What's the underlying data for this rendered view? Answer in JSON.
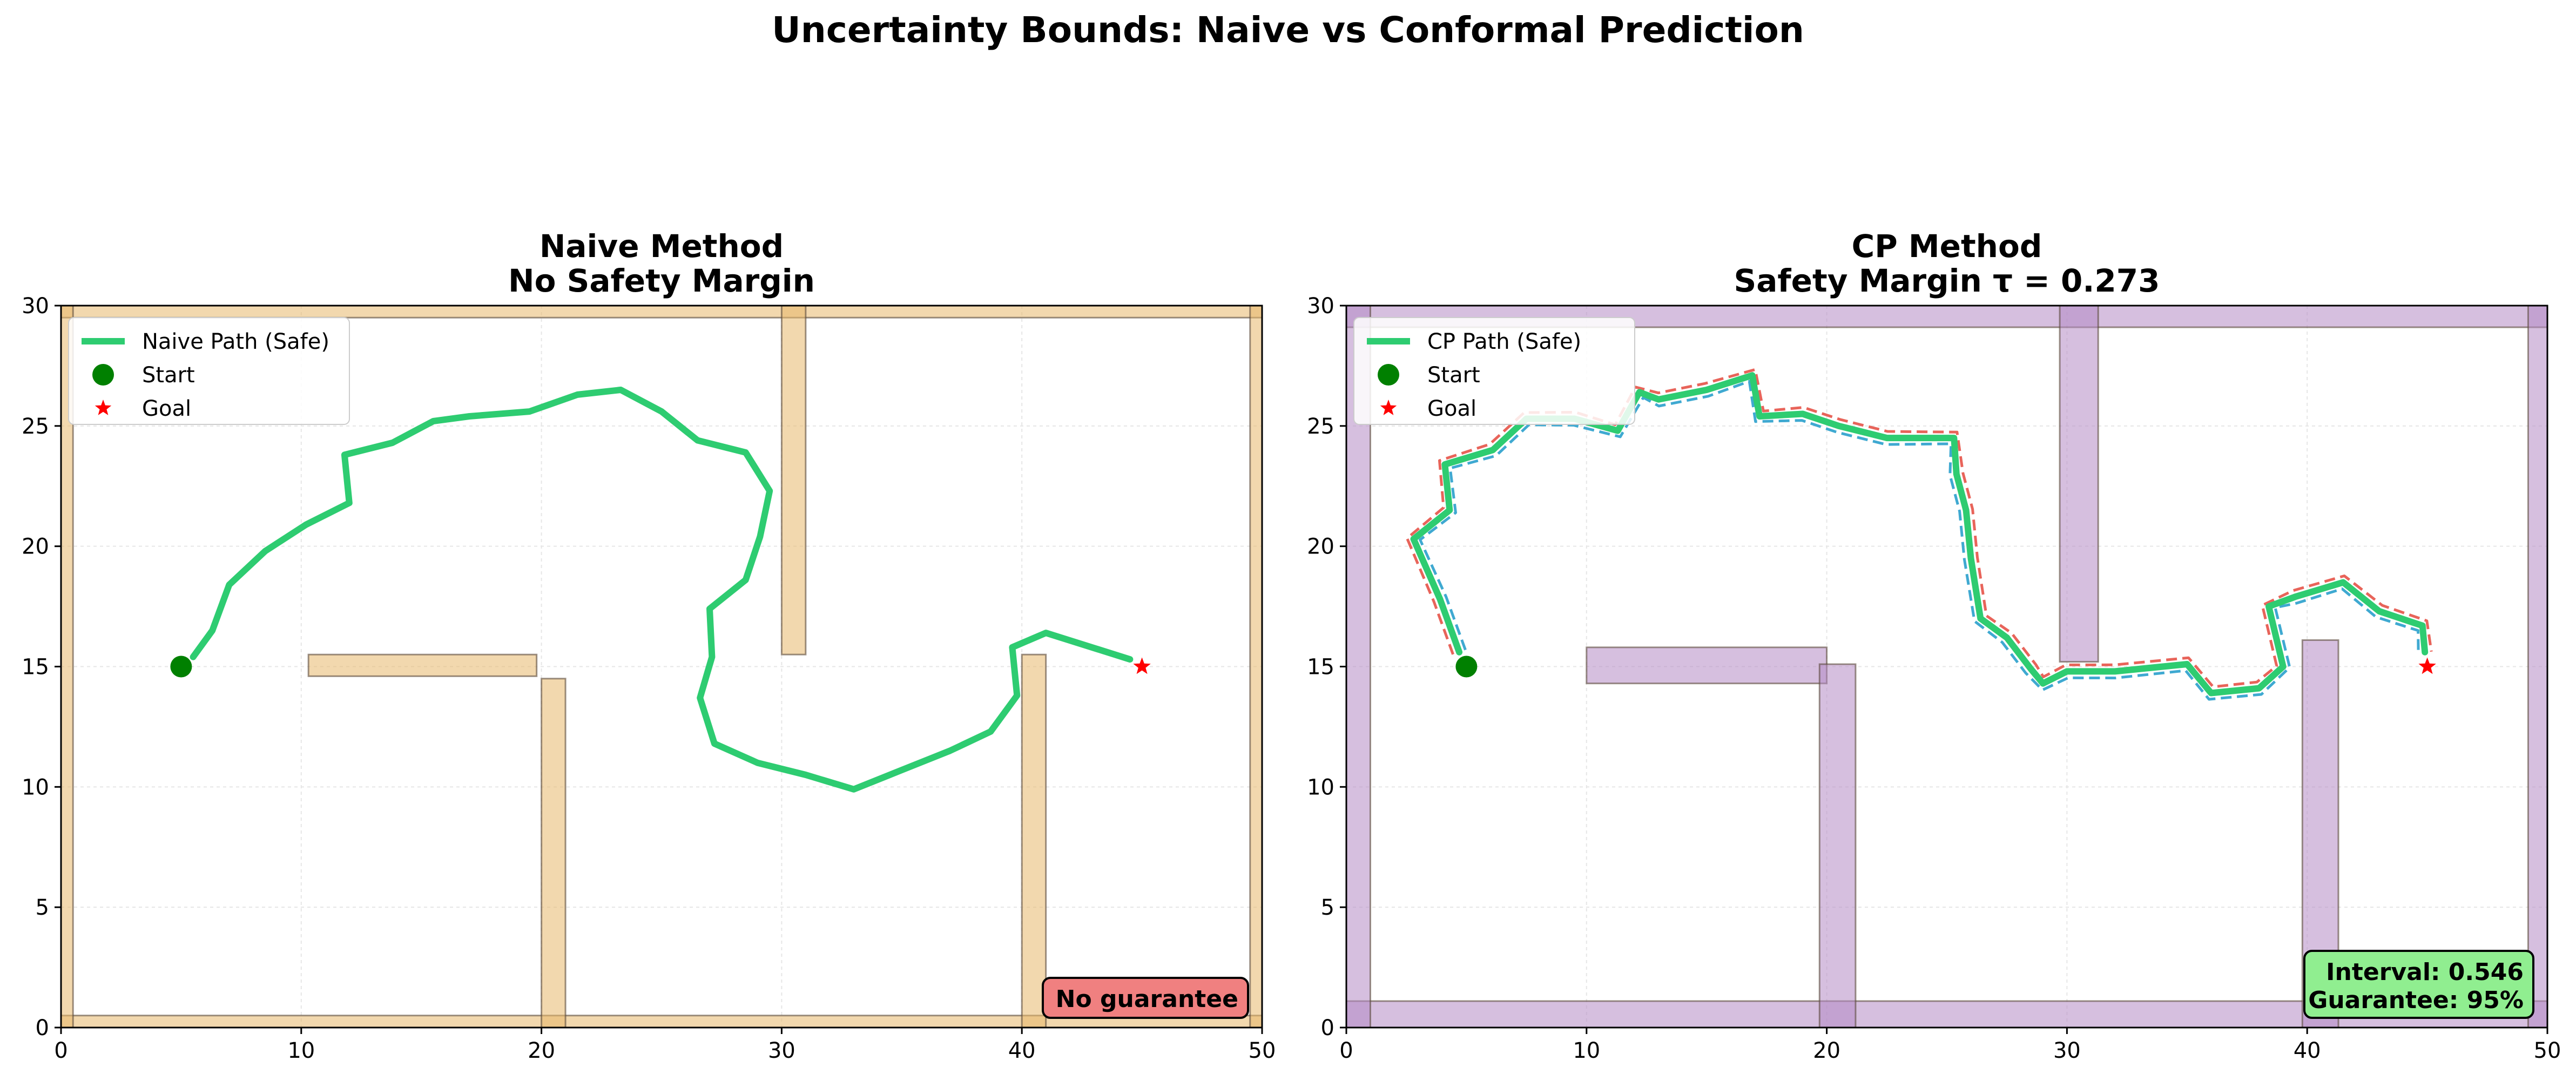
{
  "suptitle": "Uncertainty Bounds: Naive vs Conformal Prediction",
  "chart_data": [
    {
      "type": "line",
      "title_line1": "Naive Method",
      "title_line2": "No Safety Margin",
      "xlim": [
        0,
        50
      ],
      "ylim": [
        0,
        30
      ],
      "xticks": [
        0,
        10,
        20,
        30,
        40,
        50
      ],
      "yticks": [
        0,
        5,
        10,
        15,
        20,
        25,
        30
      ],
      "grid": true,
      "legend_placement": "upper-left",
      "obstacle_color": "#e8b86b",
      "obstacles": [
        {
          "x": 0,
          "y": 0,
          "w": 50,
          "h": 0.5
        },
        {
          "x": 0,
          "y": 29.5,
          "w": 50,
          "h": 0.5
        },
        {
          "x": 0,
          "y": 0,
          "w": 0.5,
          "h": 30
        },
        {
          "x": 49.5,
          "y": 0,
          "w": 0.5,
          "h": 30
        },
        {
          "x": 10.3,
          "y": 14.6,
          "w": 9.5,
          "h": 0.9
        },
        {
          "x": 20,
          "y": 0,
          "w": 1,
          "h": 14.5
        },
        {
          "x": 30,
          "y": 15.5,
          "w": 1,
          "h": 14.5
        },
        {
          "x": 40,
          "y": 0,
          "w": 1,
          "h": 15.5
        }
      ],
      "path": {
        "name": "Naive Path (Safe)",
        "color": "#2ecc71",
        "x": [
          5.5,
          6.3,
          7.0,
          8.5,
          10.2,
          12.0,
          11.8,
          13.8,
          15.5,
          17.0,
          19.5,
          21.5,
          23.3,
          25.0,
          26.5,
          28.5,
          29.5,
          29.1,
          28.5,
          27.0,
          27.1,
          26.6,
          27.2,
          29.0,
          31.0,
          33.0,
          35.0,
          37.0,
          38.7,
          39.8,
          39.6,
          41.0,
          44.5
        ],
        "y": [
          15.4,
          16.5,
          18.4,
          19.8,
          20.9,
          21.8,
          23.8,
          24.3,
          25.2,
          25.4,
          25.6,
          26.3,
          26.5,
          25.6,
          24.4,
          23.9,
          22.3,
          20.4,
          18.6,
          17.4,
          15.4,
          13.7,
          11.8,
          11.0,
          10.5,
          9.9,
          10.7,
          11.5,
          12.3,
          13.8,
          15.8,
          16.4,
          15.3
        ]
      },
      "start": {
        "label": "Start",
        "x": 5,
        "y": 15,
        "color": "#008000"
      },
      "goal": {
        "label": "Goal",
        "x": 45,
        "y": 15,
        "color": "#ff0000"
      },
      "annotation": {
        "line1": "No guarantee",
        "line2": "",
        "bg": "#f08080"
      }
    },
    {
      "type": "line",
      "title_line1": "CP Method",
      "title_line2": "Safety Margin τ = 0.273",
      "xlim": [
        0,
        50
      ],
      "ylim": [
        0,
        30
      ],
      "xticks": [
        0,
        10,
        20,
        30,
        40,
        50
      ],
      "yticks": [
        0,
        5,
        10,
        15,
        20,
        25,
        30
      ],
      "grid": true,
      "legend_placement": "upper-left",
      "obstacle_color": "#b48ac4",
      "obstacles": [
        {
          "x": 0,
          "y": 0,
          "w": 50,
          "h": 1.1
        },
        {
          "x": 0,
          "y": 29.1,
          "w": 50,
          "h": 0.9
        },
        {
          "x": 0,
          "y": 0,
          "w": 1.0,
          "h": 30
        },
        {
          "x": 49.2,
          "y": 0,
          "w": 0.8,
          "h": 30
        },
        {
          "x": 10,
          "y": 14.3,
          "w": 10,
          "h": 1.5
        },
        {
          "x": 19.7,
          "y": 0,
          "w": 1.5,
          "h": 15.1
        },
        {
          "x": 29.7,
          "y": 15.2,
          "w": 1.6,
          "h": 14.8
        },
        {
          "x": 39.8,
          "y": 0,
          "w": 1.5,
          "h": 16.1
        }
      ],
      "tau": 0.273,
      "interval": 0.546,
      "path": {
        "name": "CP Path (Safe)",
        "color": "#2ecc71",
        "x": [
          4.7,
          3.9,
          2.8,
          4.3,
          4.1,
          6.1,
          7.5,
          9.5,
          11.3,
          12.2,
          13.0,
          15.0,
          16.9,
          17.2,
          19.0,
          20.5,
          22.5,
          25.3,
          25.4,
          25.8,
          26.0,
          26.4,
          27.5,
          28.5,
          29.0,
          30.0,
          32.0,
          35.0,
          36.0,
          38.0,
          39.0,
          38.4,
          39.5,
          41.5,
          43.0,
          44.8,
          44.9
        ],
        "y": [
          15.6,
          17.8,
          20.3,
          21.5,
          23.4,
          24.0,
          25.3,
          25.3,
          24.8,
          26.4,
          26.1,
          26.5,
          27.1,
          25.4,
          25.5,
          25.0,
          24.5,
          24.5,
          23.0,
          21.5,
          19.5,
          17.0,
          16.2,
          14.9,
          14.3,
          14.8,
          14.8,
          15.1,
          13.9,
          14.1,
          15.0,
          17.5,
          17.9,
          18.5,
          17.3,
          16.7,
          15.6
        ]
      },
      "upper_color": "#e8645a",
      "lower_color": "#3fa9d1",
      "start": {
        "label": "Start",
        "x": 5,
        "y": 15,
        "color": "#008000"
      },
      "goal": {
        "label": "Goal",
        "x": 45,
        "y": 15,
        "color": "#ff0000"
      },
      "annotation": {
        "line1": "Interval: 0.546",
        "line2": "Guarantee: 95%",
        "bg": "#90ee90"
      }
    }
  ]
}
